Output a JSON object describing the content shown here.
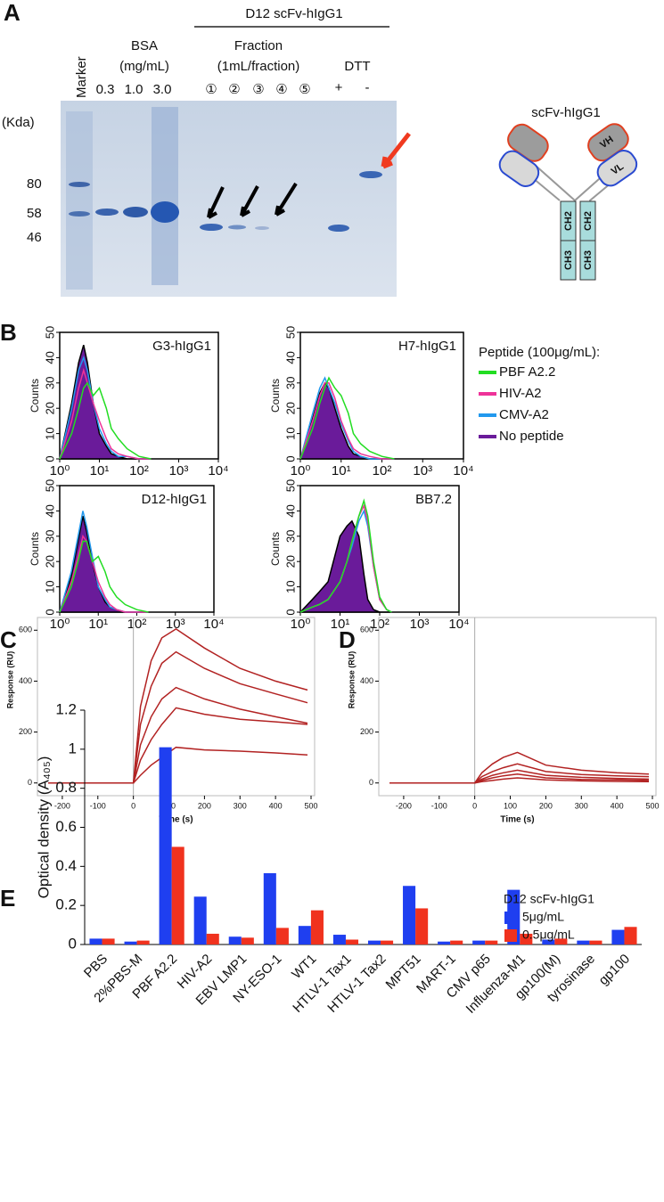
{
  "panel_a": {
    "panel": "A",
    "header": "D12 scFv-hIgG1",
    "marker": "Marker",
    "bsa": "BSA",
    "bsa_unit": "(mg/mL)",
    "bsa_lanes": [
      "0.3",
      "1.0",
      "3.0"
    ],
    "fraction": "Fraction",
    "fraction_unit": "(1mL/fraction)",
    "fractions": [
      "①",
      "②",
      "③",
      "④",
      "⑤"
    ],
    "dtt": "DTT",
    "dtt_lanes": [
      "+",
      "-"
    ],
    "kda": "(Kda)",
    "kda_marks": [
      "80",
      "58",
      "46"
    ],
    "schematic_title": "scFv-hIgG1",
    "domains": [
      "VH",
      "VL",
      "CH2",
      "CH2",
      "CH3",
      "CH3"
    ]
  },
  "flow_legend": {
    "title": "Peptide (100μg/mL):",
    "entries": [
      {
        "name": "PBF A2.2",
        "color": "#22dd22"
      },
      {
        "name": "HIV-A2",
        "color": "#ee3399"
      },
      {
        "name": "CMV-A2",
        "color": "#2299ee"
      },
      {
        "name": "No peptide",
        "color": "#6a1b9a",
        "fill": true
      }
    ]
  },
  "chart_data": [
    {
      "type": "line",
      "panel": "B",
      "title": "G3-hIgG1",
      "ylabel": "Counts",
      "xscale": "log",
      "xlim": [
        1,
        10000
      ],
      "xticks": [
        {
          "value": 1,
          "label": "10⁰"
        },
        {
          "value": 10,
          "label": "10¹"
        },
        {
          "value": 100,
          "label": "10²"
        },
        {
          "value": 1000,
          "label": "10³"
        },
        {
          "value": 10000,
          "label": "10⁴"
        }
      ],
      "ylim": [
        0,
        50
      ],
      "yticks": [
        0,
        10,
        20,
        30,
        40,
        50
      ],
      "x": [
        1,
        2,
        3,
        4,
        5,
        7,
        10,
        15,
        20,
        30,
        50,
        100,
        200
      ],
      "series": [
        {
          "values": [
            0,
            10,
            20,
            28,
            30,
            25,
            28,
            20,
            12,
            8,
            4,
            1,
            0
          ]
        },
        {
          "values": [
            0,
            15,
            28,
            35,
            30,
            22,
            15,
            8,
            4,
            2,
            1,
            0,
            0
          ]
        },
        {
          "values": [
            0,
            20,
            35,
            40,
            35,
            22,
            12,
            6,
            3,
            1,
            1,
            0,
            0
          ]
        },
        {
          "values": [
            0,
            22,
            38,
            45,
            38,
            22,
            10,
            5,
            2,
            1,
            0,
            0,
            0
          ]
        }
      ]
    },
    {
      "type": "line",
      "title": "H7-hIgG1",
      "ylabel": "Counts",
      "xscale": "log",
      "xlim": [
        1,
        10000
      ],
      "xticks": [
        {
          "value": 1,
          "label": "10⁰"
        },
        {
          "value": 10,
          "label": "10¹"
        },
        {
          "value": 100,
          "label": "10²"
        },
        {
          "value": 1000,
          "label": "10³"
        },
        {
          "value": 10000,
          "label": "10⁴"
        }
      ],
      "ylim": [
        0,
        50
      ],
      "yticks": [
        0,
        10,
        20,
        30,
        40,
        50
      ],
      "x": [
        1,
        2,
        3,
        4,
        5,
        7,
        10,
        15,
        20,
        30,
        50,
        100,
        200
      ],
      "series": [
        {
          "values": [
            0,
            12,
            22,
            28,
            32,
            28,
            25,
            18,
            10,
            6,
            3,
            1,
            0
          ]
        },
        {
          "values": [
            0,
            15,
            25,
            30,
            30,
            24,
            15,
            8,
            4,
            2,
            1,
            0,
            0
          ]
        },
        {
          "values": [
            0,
            18,
            28,
            32,
            28,
            22,
            14,
            7,
            3,
            1,
            0,
            0,
            0
          ]
        },
        {
          "values": [
            0,
            16,
            26,
            30,
            28,
            20,
            12,
            5,
            2,
            1,
            0,
            0,
            0
          ]
        }
      ]
    },
    {
      "type": "line",
      "title": "D12-hIgG1",
      "ylabel": "Counts",
      "xscale": "log",
      "xlim": [
        1,
        10000
      ],
      "xticks": [
        {
          "value": 1,
          "label": "10⁰"
        },
        {
          "value": 10,
          "label": "10¹"
        },
        {
          "value": 100,
          "label": "10²"
        },
        {
          "value": 1000,
          "label": "10³"
        },
        {
          "value": 10000,
          "label": "10⁴"
        }
      ],
      "ylim": [
        0,
        50
      ],
      "yticks": [
        0,
        10,
        20,
        30,
        40,
        50
      ],
      "x": [
        1,
        2,
        3,
        4,
        5,
        7,
        10,
        15,
        20,
        30,
        50,
        100,
        200
      ],
      "series": [
        {
          "values": [
            0,
            10,
            20,
            28,
            28,
            20,
            22,
            16,
            10,
            6,
            3,
            1,
            0
          ]
        },
        {
          "values": [
            0,
            12,
            22,
            30,
            28,
            20,
            12,
            6,
            3,
            1,
            0,
            0,
            0
          ]
        },
        {
          "values": [
            0,
            16,
            30,
            40,
            34,
            22,
            10,
            5,
            2,
            1,
            0,
            0,
            0
          ]
        },
        {
          "values": [
            0,
            14,
            28,
            38,
            32,
            20,
            10,
            4,
            2,
            1,
            0,
            0,
            0
          ]
        }
      ]
    },
    {
      "type": "line",
      "title": "BB7.2",
      "ylabel": "Counts",
      "xscale": "log",
      "xlim": [
        1,
        10000
      ],
      "xticks": [
        {
          "value": 1,
          "label": "10⁰"
        },
        {
          "value": 10,
          "label": "10¹"
        },
        {
          "value": 100,
          "label": "10²"
        },
        {
          "value": 1000,
          "label": "10³"
        },
        {
          "value": 10000,
          "label": "10⁴"
        }
      ],
      "ylim": [
        0,
        50
      ],
      "yticks": [
        0,
        10,
        20,
        30,
        40,
        50
      ],
      "x": [
        1,
        2,
        3,
        5,
        10,
        15,
        20,
        30,
        40,
        50,
        70,
        100,
        150,
        200
      ],
      "series": [
        {
          "values": [
            0,
            2,
            3,
            5,
            12,
            20,
            28,
            38,
            44,
            38,
            20,
            6,
            1,
            0
          ]
        },
        {
          "values": [
            0,
            2,
            3,
            5,
            12,
            20,
            28,
            38,
            42,
            36,
            18,
            5,
            1,
            0
          ]
        },
        {
          "values": [
            0,
            2,
            3,
            5,
            12,
            20,
            26,
            36,
            40,
            34,
            18,
            5,
            1,
            0
          ]
        },
        {
          "values": [
            0,
            5,
            8,
            12,
            30,
            34,
            36,
            30,
            15,
            5,
            1,
            0,
            0,
            0
          ]
        }
      ]
    },
    {
      "type": "line",
      "panel": "C",
      "xlabel": "Time (s)",
      "ylabel": "Response (RU)",
      "xlim": [
        -270,
        510
      ],
      "xticks": [
        -200,
        -100,
        0,
        100,
        200,
        300,
        400,
        500
      ],
      "ylim": [
        -50,
        650
      ],
      "yticks": [
        0,
        200,
        400,
        600
      ],
      "x": [
        -240,
        0,
        20,
        50,
        80,
        120,
        200,
        300,
        400,
        490
      ],
      "series": [
        {
          "color": "#b22222",
          "values": [
            0,
            0,
            300,
            480,
            570,
            605,
            530,
            450,
            400,
            365
          ]
        },
        {
          "color": "#b22222",
          "values": [
            0,
            0,
            230,
            380,
            470,
            515,
            450,
            390,
            350,
            315
          ]
        },
        {
          "color": "#b22222",
          "values": [
            0,
            0,
            150,
            260,
            330,
            375,
            330,
            290,
            260,
            235
          ]
        },
        {
          "color": "#b22222",
          "values": [
            0,
            0,
            90,
            170,
            230,
            295,
            270,
            250,
            240,
            230
          ]
        },
        {
          "color": "#b22222",
          "values": [
            0,
            0,
            30,
            70,
            100,
            140,
            130,
            125,
            118,
            110
          ]
        }
      ]
    },
    {
      "type": "line",
      "panel": "D",
      "xlabel": "Time (s)",
      "ylabel": "Response (RU)",
      "xlim": [
        -270,
        510
      ],
      "xticks": [
        -200,
        -100,
        0,
        100,
        200,
        300,
        400,
        500
      ],
      "ylim": [
        -50,
        650
      ],
      "yticks": [
        0,
        200,
        400,
        600
      ],
      "x": [
        -240,
        0,
        20,
        50,
        80,
        120,
        200,
        300,
        400,
        490
      ],
      "series": [
        {
          "color": "#b22222",
          "values": [
            0,
            0,
            40,
            75,
            100,
            120,
            70,
            50,
            40,
            35
          ]
        },
        {
          "color": "#b22222",
          "values": [
            0,
            0,
            25,
            45,
            60,
            75,
            45,
            33,
            28,
            25
          ]
        },
        {
          "color": "#b22222",
          "values": [
            0,
            0,
            15,
            30,
            40,
            50,
            30,
            22,
            18,
            15
          ]
        },
        {
          "color": "#b22222",
          "values": [
            0,
            0,
            10,
            20,
            28,
            35,
            20,
            14,
            12,
            10
          ]
        },
        {
          "color": "#b22222",
          "values": [
            0,
            0,
            5,
            10,
            15,
            20,
            12,
            8,
            6,
            5
          ]
        }
      ]
    },
    {
      "type": "bar",
      "panel": "E",
      "ylabel": "Optical density (A₄₀₅)",
      "legend_title": "D12 scFv-hIgG1",
      "ylim": [
        0,
        1.2
      ],
      "yticks": [
        0,
        0.2,
        0.4,
        0.6,
        0.8,
        1,
        1.2
      ],
      "categories": [
        "PBS",
        "2%PBS-M",
        "PBF A2.2",
        "HIV-A2",
        "EBV LMP1",
        "NY-ESO-1",
        "WT1",
        "HTLV-1 Tax1",
        "HTLV-1 Tax2",
        "MPT51",
        "MART-1",
        "CMV p65",
        "Influenza-M1",
        "gp100(M)",
        "tyrosinase",
        "gp100"
      ],
      "series": [
        {
          "name": "5μg/mL",
          "color": "#1f3ff0",
          "values": [
            0.03,
            0.015,
            1.01,
            0.245,
            0.04,
            0.365,
            0.095,
            0.05,
            0.02,
            0.3,
            0.015,
            0.02,
            0.28,
            0.025,
            0.02,
            0.075
          ]
        },
        {
          "name": "0.5μg/mL",
          "color": "#f0321e",
          "values": [
            0.03,
            0.02,
            0.5,
            0.055,
            0.035,
            0.085,
            0.175,
            0.025,
            0.02,
            0.185,
            0.02,
            0.02,
            0.055,
            0.03,
            0.02,
            0.09
          ]
        }
      ]
    }
  ]
}
